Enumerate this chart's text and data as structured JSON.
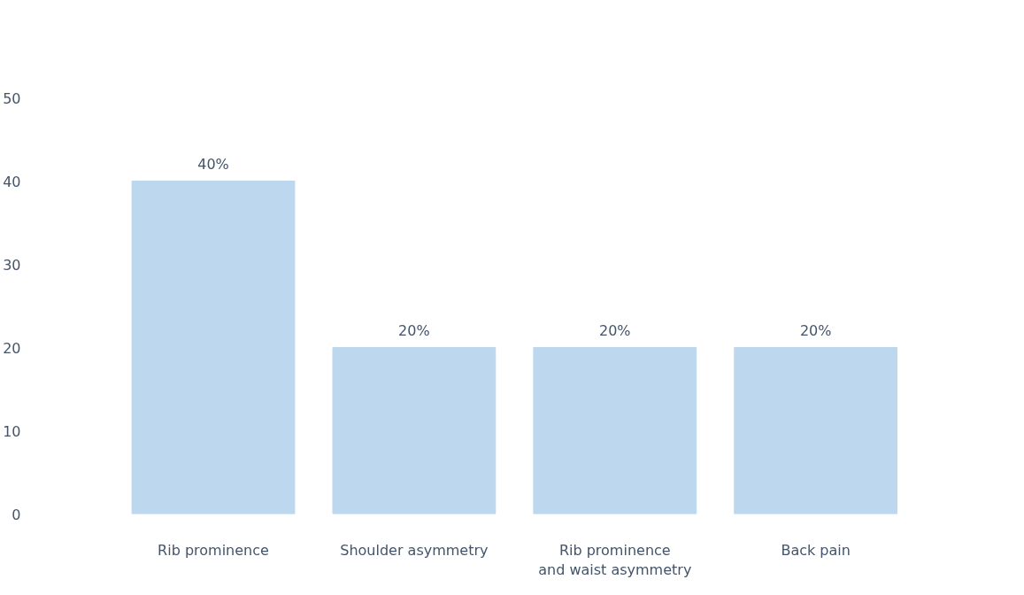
{
  "chart_data": {
    "type": "bar",
    "categories": [
      "Rib prominence",
      "Shoulder asymmetry",
      "Rib prominence\nand waist asymmetry",
      "Back pain"
    ],
    "values": [
      40,
      20,
      20,
      20
    ],
    "color": "#bdd7ee",
    "value_labels": [
      "40%",
      "20%",
      "20%",
      "20%"
    ],
    "ylim": [
      0,
      50
    ],
    "yticks": [
      0,
      10,
      20,
      30,
      40,
      50
    ],
    "grid": false
  }
}
